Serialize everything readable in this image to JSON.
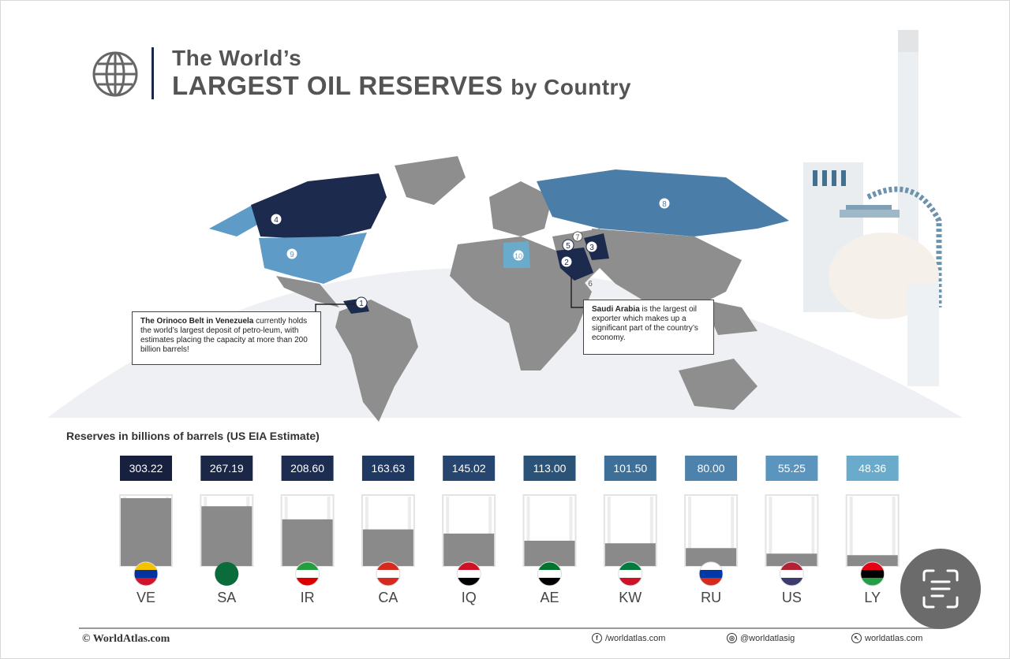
{
  "header": {
    "title_line1": "The World’s",
    "title_main": "LARGEST OIL RESERVES",
    "title_suffix": "by Country",
    "logo_icon": "globe-icon"
  },
  "callouts": {
    "venezuela": {
      "lead": "The Orinoco Belt in Venezuela",
      "text": " currently holds the world’s largest deposit of petro-leum, with estimates placing the capacity at more than 200 billion barrels!"
    },
    "saudi": {
      "lead": "Saudi Arabia",
      "text": " is the largest oil exporter which makes up a significant part of the country’s economy."
    }
  },
  "map_markers": [
    "1",
    "2",
    "3",
    "4",
    "5",
    "6",
    "7",
    "8",
    "9",
    "10"
  ],
  "chart_data": {
    "type": "bar",
    "title": "Reserves in billions of barrels  (US EIA Estimate)",
    "categories": [
      "VE",
      "SA",
      "IR",
      "CA",
      "IQ",
      "AE",
      "KW",
      "RU",
      "US",
      "LY"
    ],
    "values": [
      303.22,
      267.19,
      208.6,
      163.63,
      145.02,
      113.0,
      101.5,
      80.0,
      55.25,
      48.36
    ],
    "labels": [
      "303.22",
      "267.19",
      "208.60",
      "163.63",
      "145.02",
      "113.00",
      "101.50",
      "80.00",
      "55.25",
      "48.36"
    ],
    "ylim": [
      0,
      303.22
    ],
    "xlabel": "",
    "ylabel": "",
    "label_colors": [
      "#17213f",
      "#1b2747",
      "#1d2d52",
      "#203963",
      "#26466f",
      "#2b5377",
      "#3d6f98",
      "#4c82ab",
      "#5b95be",
      "#6aaacb"
    ],
    "fill_color": "#8a8a8a"
  },
  "footer": {
    "brand": "© WorldAtlas.com",
    "facebook": "/worldatlas.com",
    "instagram": "@worldatlasig",
    "website": "worldatlas.com"
  },
  "colors": {
    "land": "#8e8e8e",
    "dark_navy": "#1b2a4d",
    "mid_blue": "#4a7ea8",
    "light_blue": "#5e9cc7",
    "title_gray": "#545454"
  }
}
